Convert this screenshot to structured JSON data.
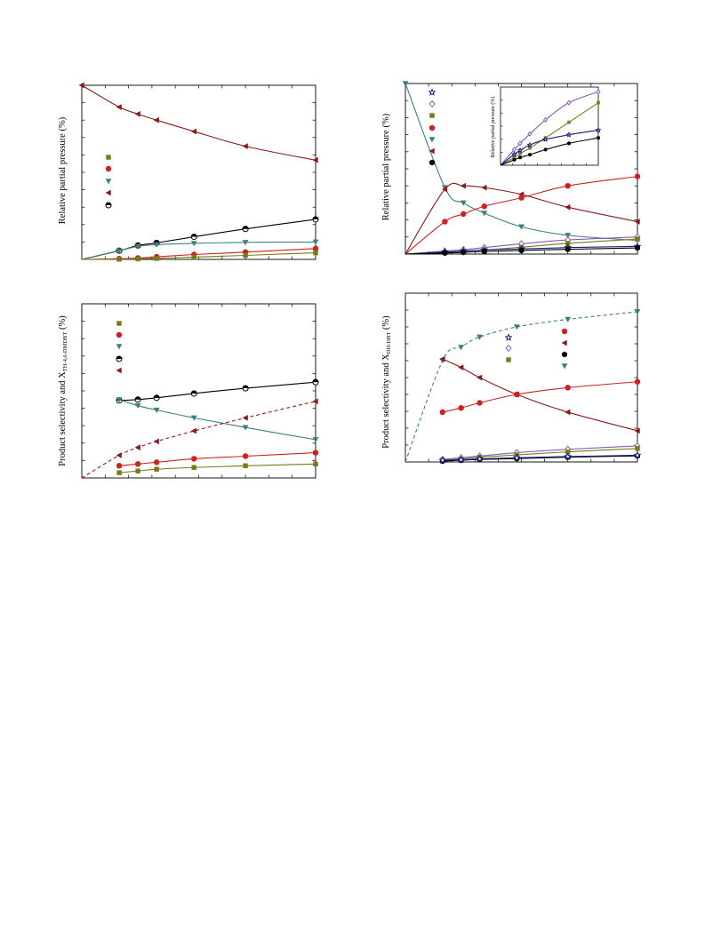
{
  "chart_data": [
    {
      "id": "A",
      "type": "scatter",
      "ylabel": "Relative partial pressure (%)",
      "xlabel": "",
      "xlim": [
        0,
        100
      ],
      "ylim": [
        0,
        100
      ],
      "legend": "left",
      "series": [
        {
          "color": "#8b1a1a",
          "marker": "triangle-left",
          "line": "solid",
          "x": [
            0,
            16,
            24,
            32,
            48,
            70,
            100
          ],
          "y": [
            100,
            87.5,
            83.5,
            80,
            73.5,
            65,
            57
          ]
        },
        {
          "color": "#000000",
          "marker": "half-circle",
          "line": "solid",
          "x": [
            0,
            16,
            24,
            32,
            48,
            70,
            100
          ],
          "y": [
            0,
            5,
            8,
            9.5,
            13,
            17.5,
            23
          ]
        },
        {
          "color": "#3d7f7f",
          "marker": "triangle-down",
          "line": "solid",
          "x": [
            0,
            16,
            24,
            32,
            48,
            70,
            100
          ],
          "y": [
            0,
            5,
            7.5,
            8.5,
            9.2,
            9.8,
            10
          ]
        },
        {
          "color": "#cc2222",
          "marker": "circle",
          "line": "solid",
          "x": [
            0,
            16,
            24,
            32,
            48,
            70,
            100
          ],
          "y": [
            0,
            0.4,
            0.8,
            1.5,
            2.8,
            4.2,
            6.2
          ]
        },
        {
          "color": "#7a7a1a",
          "marker": "square",
          "line": "solid",
          "x": [
            0,
            16,
            24,
            32,
            48,
            70,
            100
          ],
          "y": [
            0,
            0.1,
            0.3,
            0.6,
            1.3,
            2.3,
            3.8
          ]
        }
      ],
      "legend_entries": [
        "square",
        "circle",
        "triangle-down",
        "triangle-left",
        "half-circle"
      ]
    },
    {
      "id": "B",
      "type": "scatter",
      "ylabel": "Relative partial pressure (%)",
      "xlabel": "",
      "xlim": [
        0,
        100
      ],
      "ylim": [
        0,
        100
      ],
      "legend": "top-left",
      "series": [
        {
          "color": "#3d7f7f",
          "marker": "triangle-down",
          "line": "solid",
          "x": [
            0,
            17,
            25,
            34,
            50,
            70,
            100
          ],
          "y": [
            100,
            39,
            30,
            24,
            16,
            11,
            8
          ]
        },
        {
          "color": "#8b1a1a",
          "marker": "triangle-left",
          "line": "solid",
          "x": [
            0,
            17,
            25,
            34,
            50,
            70,
            100
          ],
          "y": [
            0,
            38,
            40,
            39,
            35,
            27.5,
            19
          ]
        },
        {
          "color": "#cc2222",
          "marker": "circle",
          "line": "solid",
          "x": [
            0,
            17,
            25,
            34,
            50,
            70,
            100
          ],
          "y": [
            0,
            19,
            23.5,
            28,
            33,
            40,
            45.5
          ]
        },
        {
          "color": "#8a5ab8",
          "marker": "diamond-open",
          "line": "solid",
          "x": [
            0,
            17,
            25,
            34,
            50,
            70,
            100
          ],
          "y": [
            0,
            1.8,
            2.6,
            3.8,
            6,
            8.3,
            10
          ]
        },
        {
          "color": "#7a7a1a",
          "marker": "square",
          "line": "solid",
          "x": [
            0,
            17,
            25,
            34,
            50,
            70,
            100
          ],
          "y": [
            0,
            0.8,
            1.5,
            2.4,
            4,
            6.3,
            8.8
          ]
        },
        {
          "color": "#1c1c80",
          "marker": "star-open",
          "line": "solid",
          "x": [
            0,
            17,
            25,
            34,
            50,
            70,
            100
          ],
          "y": [
            0,
            1.2,
            1.8,
            2.4,
            3,
            3.8,
            4.5
          ]
        },
        {
          "color": "#000000",
          "marker": "hexagon",
          "line": "solid",
          "x": [
            0,
            17,
            25,
            34,
            50,
            70,
            100
          ],
          "y": [
            0,
            0.6,
            1,
            1.5,
            2.1,
            2.8,
            3.6
          ]
        }
      ],
      "legend_entries": [
        "star-open",
        "diamond-open",
        "square",
        "circle",
        "triangle-down",
        "triangle-left",
        "hexagon"
      ],
      "inset": {
        "ylabel": "Relative partial pressure (%)",
        "xlim": [
          0,
          100
        ],
        "ylim": [
          0,
          100
        ],
        "series": [
          {
            "color": "#8a5ab8",
            "marker": "diamond-open",
            "x": [
              0,
              14,
              20,
              30,
              46,
              70,
              100
            ],
            "y": [
              0,
              20,
              28,
              40,
              58,
              80,
              94
            ]
          },
          {
            "color": "#7a7a1a",
            "marker": "square",
            "x": [
              0,
              14,
              20,
              30,
              46,
              70,
              100
            ],
            "y": [
              0,
              10,
              15,
              22,
              35,
              55,
              80
            ]
          },
          {
            "color": "#1c1c80",
            "marker": "star-open",
            "x": [
              0,
              14,
              20,
              30,
              46,
              70,
              100
            ],
            "y": [
              0,
              14,
              19,
              26,
              33,
              39,
              45
            ]
          },
          {
            "color": "#000000",
            "marker": "hexagon",
            "x": [
              0,
              14,
              20,
              30,
              46,
              70,
              100
            ],
            "y": [
              0,
              7,
              10,
              13.5,
              20,
              28,
              35
            ]
          }
        ]
      }
    },
    {
      "id": "C",
      "type": "scatter",
      "ylabel": "Product selectivity and X",
      "ylabel_sub": "TH-4,6-DMDBT",
      "ylabel_tail": " (%)",
      "xlabel": "",
      "xlim": [
        0,
        100
      ],
      "ylim": [
        0,
        100
      ],
      "legend": "left",
      "series": [
        {
          "color": "#000000",
          "marker": "half-circle",
          "line": "solid",
          "x": [
            16,
            24,
            32,
            48,
            70,
            100
          ],
          "y": [
            44.5,
            45,
            46,
            48.5,
            51.5,
            55
          ]
        },
        {
          "color": "#3d7f7f",
          "marker": "triangle-down",
          "line": "solid",
          "x": [
            16,
            24,
            32,
            48,
            70,
            100
          ],
          "y": [
            45,
            41.5,
            39,
            34.5,
            29,
            22
          ]
        },
        {
          "color": "#8b1a1a",
          "marker": "triangle-left",
          "line": "dashed",
          "x": [
            0,
            16,
            24,
            32,
            48,
            70,
            100
          ],
          "y": [
            0,
            13,
            17.5,
            21,
            27,
            34.5,
            44
          ]
        },
        {
          "color": "#cc2222",
          "marker": "circle",
          "line": "solid",
          "x": [
            16,
            24,
            32,
            48,
            70,
            100
          ],
          "y": [
            7,
            8,
            9,
            11,
            12.5,
            14.5
          ]
        },
        {
          "color": "#7a7a1a",
          "marker": "square",
          "line": "solid",
          "x": [
            16,
            24,
            32,
            48,
            70,
            100
          ],
          "y": [
            3,
            4,
            5,
            6,
            7,
            8
          ]
        }
      ],
      "legend_entries": [
        "square",
        "circle",
        "triangle-down",
        "half-circle",
        "triangle-left"
      ]
    },
    {
      "id": "D",
      "type": "scatter",
      "ylabel": "Product selectivity and X",
      "ylabel_sub": "DH-DBT",
      "ylabel_tail": " (%)",
      "xlabel": "",
      "xlim": [
        0,
        100
      ],
      "ylim": [
        0,
        100
      ],
      "legend": "center-left",
      "series": [
        {
          "color": "#3d7f7f",
          "marker": "triangle-down",
          "line": "dashed",
          "x": [
            0,
            16,
            24,
            32,
            48,
            70,
            100
          ],
          "y": [
            0,
            60,
            68,
            74,
            80,
            84.5,
            89
          ]
        },
        {
          "color": "#8b1a1a",
          "marker": "triangle-left",
          "line": "solid",
          "x": [
            16,
            24,
            32,
            48,
            70,
            100
          ],
          "y": [
            61,
            56,
            50,
            40,
            29.5,
            18.5
          ]
        },
        {
          "color": "#cc2222",
          "marker": "circle",
          "line": "solid",
          "x": [
            16,
            24,
            32,
            48,
            70,
            100
          ],
          "y": [
            29.5,
            32,
            35,
            40,
            44,
            47.5
          ]
        },
        {
          "color": "#8a5ab8",
          "marker": "diamond-open",
          "line": "solid",
          "x": [
            16,
            24,
            32,
            48,
            70,
            100
          ],
          "y": [
            1.5,
            2.5,
            3.5,
            5.5,
            7.5,
            9.5
          ]
        },
        {
          "color": "#7a7a1a",
          "marker": "square",
          "line": "solid",
          "x": [
            16,
            24,
            32,
            48,
            70,
            100
          ],
          "y": [
            1,
            1.8,
            2.8,
            4.2,
            6,
            8
          ]
        },
        {
          "color": "#000000",
          "marker": "hexagon",
          "line": "solid",
          "x": [
            16,
            24,
            32,
            48,
            70,
            100
          ],
          "y": [
            0.5,
            1,
            1.5,
            2,
            2.8,
            3.6
          ]
        },
        {
          "color": "#1c1c80",
          "marker": "star-open",
          "line": "solid",
          "x": [
            16,
            24,
            32,
            48,
            70,
            100
          ],
          "y": [
            1,
            1.3,
            1.8,
            2.5,
            3.2,
            4
          ]
        }
      ],
      "legend_entries": [
        "star-open",
        "diamond-open",
        "square",
        "circle",
        "triangle-left",
        "hexagon",
        "triangle-down"
      ]
    }
  ]
}
